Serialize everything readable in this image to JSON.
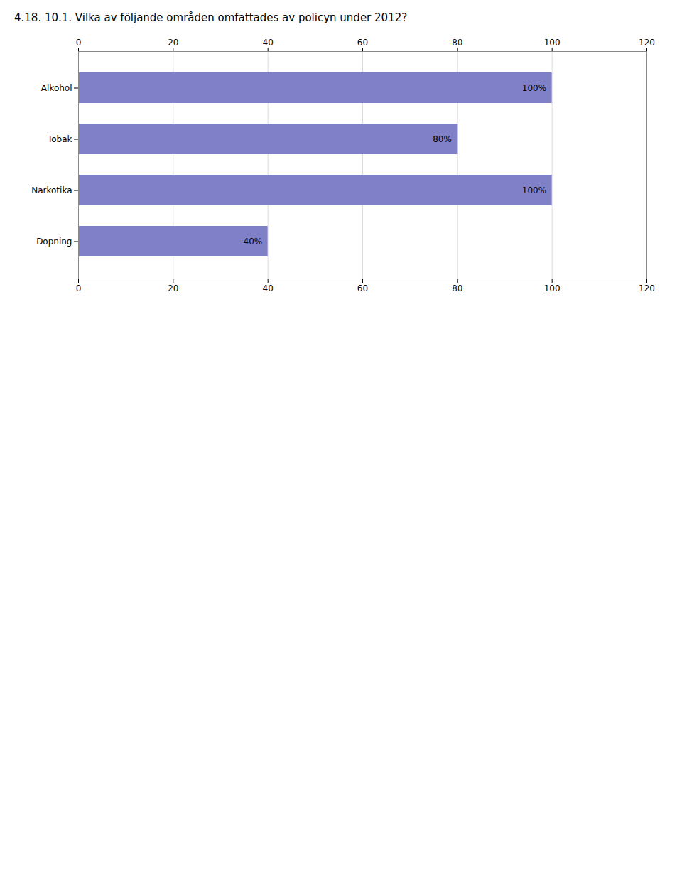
{
  "chart_data": {
    "type": "bar",
    "orientation": "horizontal",
    "title": "4.18. 10.1. Vilka av följande områden omfattades av policyn under 2012?",
    "categories": [
      "Alkohol",
      "Tobak",
      "Narkotika",
      "Dopning"
    ],
    "values": [
      100,
      80,
      100,
      40
    ],
    "value_labels": [
      "100%",
      "80%",
      "100%",
      "40%"
    ],
    "data_labels": true,
    "color": "#8080c8",
    "xlim": [
      0,
      120
    ],
    "xticks": [
      0,
      20,
      40,
      60,
      80,
      100,
      120
    ],
    "grid": true
  }
}
